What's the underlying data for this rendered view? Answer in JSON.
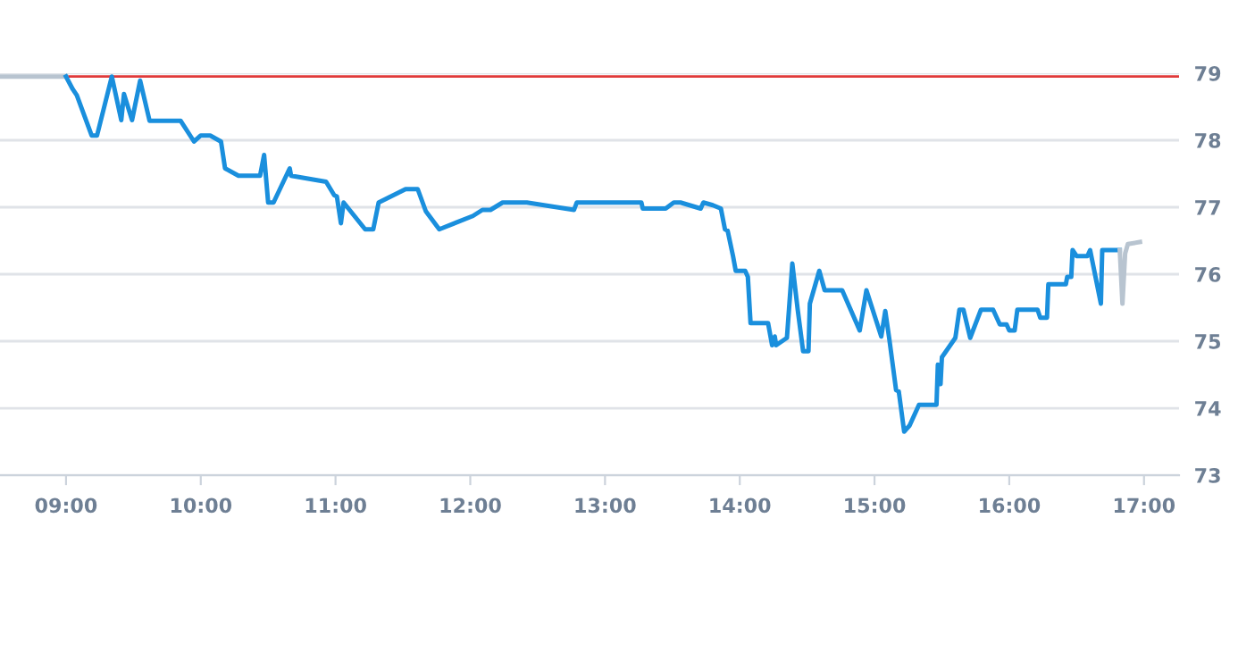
{
  "chart_data": {
    "type": "line",
    "xlim": [
      8.51,
      17.26
    ],
    "ylim": [
      73,
      79
    ],
    "xticks": [
      {
        "value": 9,
        "label": "09:00"
      },
      {
        "value": 10,
        "label": "10:00"
      },
      {
        "value": 11,
        "label": "11:00"
      },
      {
        "value": 12,
        "label": "12:00"
      },
      {
        "value": 13,
        "label": "13:00"
      },
      {
        "value": 14,
        "label": "14:00"
      },
      {
        "value": 15,
        "label": "15:00"
      },
      {
        "value": 16,
        "label": "16:00"
      },
      {
        "value": 17,
        "label": "17:00"
      }
    ],
    "yticks": [
      73,
      74,
      75,
      76,
      77,
      78,
      79
    ],
    "grid": "y",
    "marker": "none",
    "line_style": "solid",
    "ref_lines": [
      {
        "axis": "y",
        "value": 78.95,
        "label": null,
        "color": "#e03a3a"
      }
    ],
    "series": [
      {
        "color": "#b8c4d0",
        "x": [
          8.51,
          9.0
        ],
        "values": [
          78.95,
          78.95
        ]
      },
      {
        "color": "#1a8fdd",
        "x": [
          9.0,
          9.05,
          9.08,
          9.19,
          9.23,
          9.34,
          9.41,
          9.43,
          9.49,
          9.55,
          9.62,
          9.85,
          9.95,
          10.0,
          10.07,
          10.15,
          10.18,
          10.28,
          10.44,
          10.47,
          10.5,
          10.54,
          10.66,
          10.67,
          10.93,
          10.99,
          11.01,
          11.04,
          11.06,
          11.22,
          11.28,
          11.32,
          11.52,
          11.61,
          11.67,
          11.77,
          12.02,
          12.09,
          12.15,
          12.24,
          12.42,
          12.77,
          12.79,
          13.27,
          13.28,
          13.45,
          13.51,
          13.56,
          13.71,
          13.73,
          13.8,
          13.86,
          13.89,
          13.91,
          13.95,
          13.97,
          14.04,
          14.06,
          14.08,
          14.21,
          14.24,
          14.26,
          14.27,
          14.35,
          14.39,
          14.43,
          14.47,
          14.51,
          14.52,
          14.59,
          14.63,
          14.76,
          14.89,
          14.94,
          15.05,
          15.08,
          15.11,
          15.16,
          15.18,
          15.22,
          15.26,
          15.33,
          15.46,
          15.47,
          15.49,
          15.5,
          15.6,
          15.63,
          15.66,
          15.71,
          15.79,
          15.88,
          15.93,
          15.98,
          16.0,
          16.04,
          16.06,
          16.21,
          16.23,
          16.28,
          16.29,
          16.42,
          16.43,
          16.46,
          16.47,
          16.5,
          16.58,
          16.6,
          16.68,
          16.69,
          16.82
        ],
        "values": [
          78.95,
          78.76,
          78.67,
          78.07,
          78.07,
          78.95,
          78.3,
          78.69,
          78.3,
          78.89,
          78.29,
          78.29,
          77.98,
          78.07,
          78.07,
          77.98,
          77.58,
          77.47,
          77.47,
          77.78,
          77.07,
          77.07,
          77.58,
          77.47,
          77.38,
          77.18,
          77.16,
          76.76,
          77.07,
          76.67,
          76.67,
          77.07,
          77.27,
          77.27,
          76.94,
          76.67,
          76.87,
          76.96,
          76.96,
          77.07,
          77.07,
          76.96,
          77.07,
          77.07,
          76.98,
          76.98,
          77.07,
          77.07,
          76.98,
          77.07,
          77.03,
          76.98,
          76.67,
          76.65,
          76.27,
          76.05,
          76.05,
          75.96,
          75.27,
          75.27,
          74.94,
          75.07,
          74.94,
          75.05,
          76.16,
          75.47,
          74.85,
          74.85,
          75.56,
          76.05,
          75.76,
          75.76,
          75.16,
          75.76,
          75.07,
          75.45,
          75.03,
          74.27,
          74.25,
          73.65,
          73.74,
          74.05,
          74.05,
          74.65,
          74.36,
          74.76,
          75.05,
          75.47,
          75.47,
          75.05,
          75.47,
          75.47,
          75.25,
          75.25,
          75.16,
          75.16,
          75.47,
          75.47,
          75.35,
          75.35,
          75.85,
          75.85,
          75.96,
          75.96,
          76.36,
          76.27,
          76.27,
          76.36,
          75.56,
          76.36,
          76.36
        ]
      },
      {
        "color": "#b8c4d0",
        "x": [
          16.82,
          16.84,
          16.86,
          16.88,
          16.97
        ],
        "values": [
          76.36,
          75.56,
          76.31,
          76.45,
          76.48
        ]
      }
    ]
  }
}
